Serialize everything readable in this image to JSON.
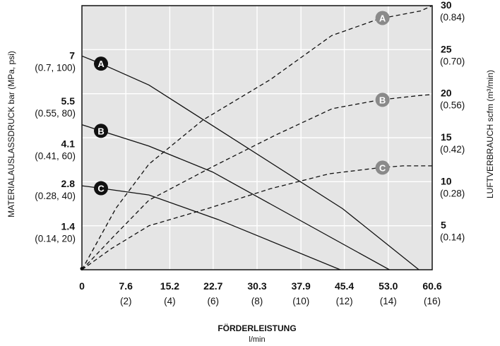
{
  "chart_data": {
    "type": "line",
    "x_axis": {
      "title": "FÖRDERLEISTUNG",
      "unit": "l/min",
      "range": [
        0,
        60.6
      ],
      "ticks": [
        {
          "value": 0,
          "label": "0",
          "sub": ""
        },
        {
          "value": 7.6,
          "label": "7.6",
          "sub": "(2)"
        },
        {
          "value": 15.2,
          "label": "15.2",
          "sub": "(4)"
        },
        {
          "value": 22.7,
          "label": "22.7",
          "sub": "(6)"
        },
        {
          "value": 30.3,
          "label": "30.3",
          "sub": "(8)"
        },
        {
          "value": 37.9,
          "label": "37.9",
          "sub": "(10)"
        },
        {
          "value": 45.4,
          "label": "45.4",
          "sub": "(12)"
        },
        {
          "value": 53.0,
          "label": "53.0",
          "sub": "(14)"
        },
        {
          "value": 60.6,
          "label": "60.6",
          "sub": "(16)"
        }
      ]
    },
    "y_left": {
      "title": "MATERIALAUSLASSDRUCK bar (MPa, psi)",
      "range": [
        0,
        8.65
      ],
      "ticks": [
        {
          "value": 7,
          "label": "7",
          "sub": "(0.7, 100)"
        },
        {
          "value": 5.5,
          "label": "5.5",
          "sub": "(0.55, 80)"
        },
        {
          "value": 4.1,
          "label": "4.1",
          "sub": "(0.41, 60)"
        },
        {
          "value": 2.8,
          "label": "2.8",
          "sub": "(0.28, 40)"
        },
        {
          "value": 1.4,
          "label": "1.4",
          "sub": "(0.14, 20)"
        }
      ]
    },
    "y_right": {
      "title": "LUFTVERBRAUCH scfm (m³/min)",
      "range": [
        0,
        30
      ],
      "ticks": [
        {
          "value": 30,
          "label": "30",
          "sub": "(0.84)"
        },
        {
          "value": 25,
          "label": "25",
          "sub": "(0.70)"
        },
        {
          "value": 20,
          "label": "20",
          "sub": "(0.56)"
        },
        {
          "value": 15,
          "label": "15",
          "sub": "(0.42)"
        },
        {
          "value": 10,
          "label": "10",
          "sub": "(0.28)"
        },
        {
          "value": 5,
          "label": "5",
          "sub": "(0.14)"
        }
      ]
    },
    "grid": true,
    "pressure_series": [
      {
        "name": "A",
        "axis": "left",
        "style": "solid",
        "x": [
          0,
          3.3,
          11.6,
          45.1,
          58.3
        ],
        "y": [
          7.0,
          6.75,
          6.05,
          2.0,
          0.0
        ]
      },
      {
        "name": "B",
        "axis": "left",
        "style": "solid",
        "x": [
          0,
          3.3,
          11.6,
          22.6,
          53.2
        ],
        "y": [
          4.75,
          4.55,
          4.05,
          3.2,
          0.0
        ]
      },
      {
        "name": "C",
        "axis": "left",
        "style": "solid",
        "x": [
          0,
          3.3,
          11.6,
          23.5,
          44.7
        ],
        "y": [
          2.75,
          2.67,
          2.45,
          1.65,
          0.0
        ]
      }
    ],
    "air_series": [
      {
        "name": "A",
        "axis": "right",
        "style": "dashed",
        "x": [
          0,
          5.9,
          11.6,
          20.9,
          32.6,
          43.2,
          51.4,
          58.6,
          61.0
        ],
        "y": [
          0,
          7.0,
          12.0,
          17.0,
          21.6,
          26.6,
          28.5,
          29.4,
          30.0
        ]
      },
      {
        "name": "B",
        "axis": "right",
        "style": "dashed",
        "x": [
          0,
          5.8,
          11.6,
          22.3,
          33.5,
          43.3,
          51.6,
          58.5,
          61.0
        ],
        "y": [
          0,
          4.0,
          7.9,
          11.6,
          15.3,
          18.3,
          19.3,
          19.8,
          19.9
        ]
      },
      {
        "name": "C",
        "axis": "right",
        "style": "dashed",
        "x": [
          0,
          5.1,
          11.6,
          22.0,
          32.6,
          42.8,
          51.6,
          55.5,
          61.0
        ],
        "y": [
          0,
          2.4,
          5.0,
          7.0,
          9.2,
          10.9,
          11.6,
          11.8,
          11.8
        ]
      }
    ],
    "pressure_markers": [
      {
        "label": "A",
        "x": 3.3,
        "y": 6.75
      },
      {
        "label": "B",
        "x": 3.3,
        "y": 4.55
      },
      {
        "label": "C",
        "x": 3.3,
        "y": 2.67
      }
    ],
    "air_markers": [
      {
        "label": "A",
        "x": 52.0,
        "y": 28.6
      },
      {
        "label": "B",
        "x": 52.0,
        "y": 19.3
      },
      {
        "label": "C",
        "x": 52.0,
        "y": 11.6
      }
    ],
    "colors": {
      "plot_bg": "#e5e5e5",
      "grid": "#ffffff",
      "line": "#111111",
      "marker_dark": "#111111",
      "marker_gray": "#8a8a8a",
      "marker_text": "#ffffff"
    }
  }
}
